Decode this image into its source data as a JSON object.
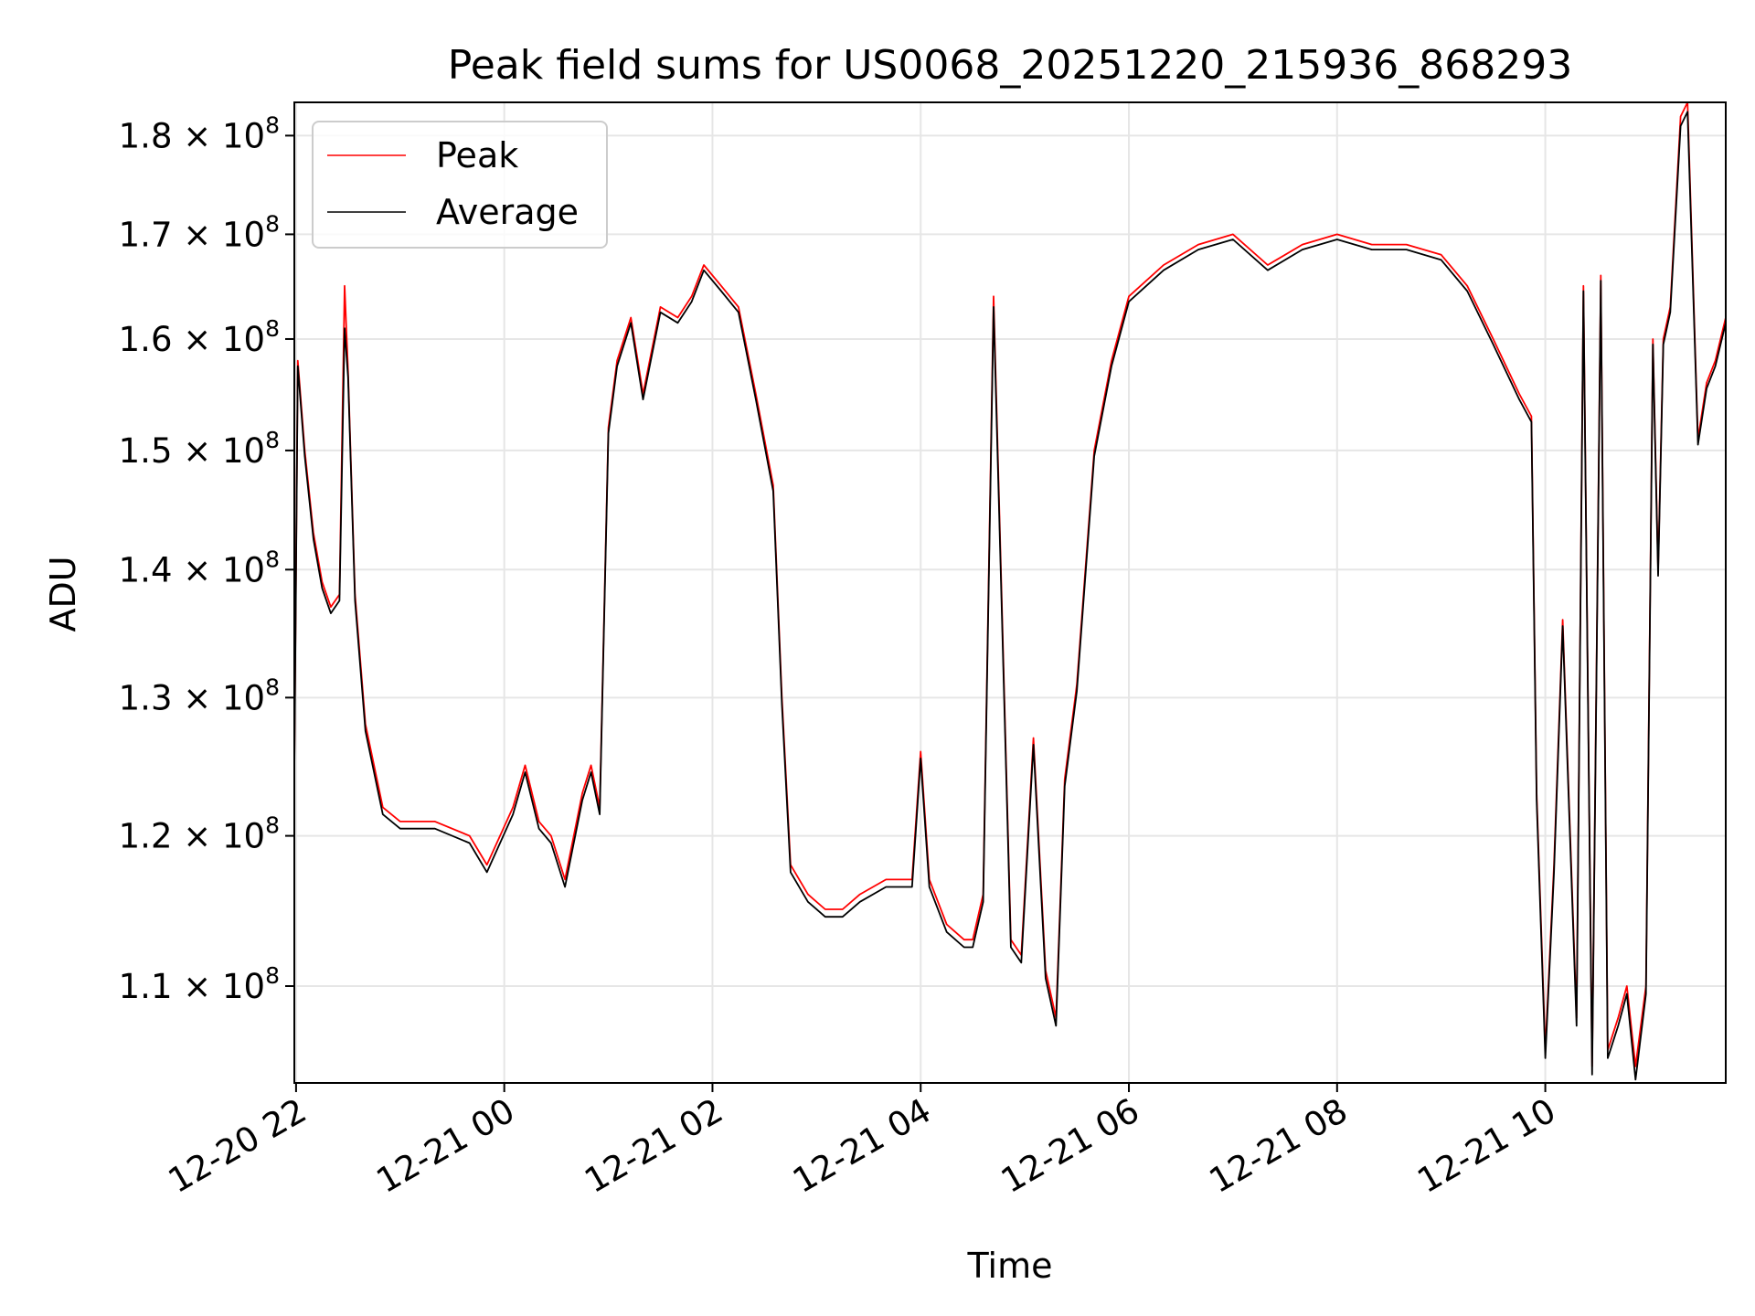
{
  "chart_data": {
    "type": "line",
    "title": "Peak field sums for US0068_20251220_215936_868293",
    "xlabel": "Time",
    "ylabel": "ADU",
    "yscale": "log",
    "xlim": [
      "2025-12-20T21:59",
      "2025-12-21T11:44"
    ],
    "ylim": [
      104000000,
      183500000
    ],
    "x_ticks": [
      "12-20 22",
      "12-21 00",
      "12-21 02",
      "12-21 04",
      "12-21 06",
      "12-21 08",
      "12-21 10"
    ],
    "y_ticks": [
      {
        "value": 110000000,
        "mantissa": "1.1",
        "base": "10",
        "exp": "8"
      },
      {
        "value": 120000000,
        "mantissa": "1.2",
        "base": "10",
        "exp": "8"
      },
      {
        "value": 130000000,
        "mantissa": "1.3",
        "base": "10",
        "exp": "8"
      },
      {
        "value": 140000000,
        "mantissa": "1.4",
        "base": "10",
        "exp": "8"
      },
      {
        "value": 150000000,
        "mantissa": "1.5",
        "base": "10",
        "exp": "8"
      },
      {
        "value": 160000000,
        "mantissa": "1.6",
        "base": "10",
        "exp": "8"
      },
      {
        "value": 170000000,
        "mantissa": "1.7",
        "base": "10",
        "exp": "8"
      },
      {
        "value": 180000000,
        "mantissa": "1.8",
        "base": "10",
        "exp": "8"
      }
    ],
    "grid": true,
    "legend_position": "top-left",
    "series": [
      {
        "name": "Peak",
        "color": "#ff0000",
        "x": [
          "2025-12-20T21:59",
          "2025-12-20T22:01",
          "2025-12-20T22:05",
          "2025-12-20T22:10",
          "2025-12-20T22:15",
          "2025-12-20T22:20",
          "2025-12-20T22:25",
          "2025-12-20T22:28",
          "2025-12-20T22:30",
          "2025-12-20T22:34",
          "2025-12-20T22:40",
          "2025-12-20T22:50",
          "2025-12-20T23:00",
          "2025-12-20T23:20",
          "2025-12-20T23:40",
          "2025-12-20T23:50",
          "2025-12-21T00:05",
          "2025-12-21T00:12",
          "2025-12-21T00:20",
          "2025-12-21T00:27",
          "2025-12-21T00:35",
          "2025-12-21T00:45",
          "2025-12-21T00:50",
          "2025-12-21T00:55",
          "2025-12-21T01:00",
          "2025-12-21T01:05",
          "2025-12-21T01:13",
          "2025-12-21T01:20",
          "2025-12-21T01:30",
          "2025-12-21T01:40",
          "2025-12-21T01:48",
          "2025-12-21T01:55",
          "2025-12-21T02:05",
          "2025-12-21T02:15",
          "2025-12-21T02:25",
          "2025-12-21T02:35",
          "2025-12-21T02:40",
          "2025-12-21T02:45",
          "2025-12-21T02:55",
          "2025-12-21T03:05",
          "2025-12-21T03:15",
          "2025-12-21T03:25",
          "2025-12-21T03:40",
          "2025-12-21T03:55",
          "2025-12-21T04:00",
          "2025-12-21T04:05",
          "2025-12-21T04:15",
          "2025-12-21T04:25",
          "2025-12-21T04:30",
          "2025-12-21T04:36",
          "2025-12-21T04:42",
          "2025-12-21T04:52",
          "2025-12-21T04:58",
          "2025-12-21T05:05",
          "2025-12-21T05:12",
          "2025-12-21T05:18",
          "2025-12-21T05:23",
          "2025-12-21T05:30",
          "2025-12-21T05:40",
          "2025-12-21T05:50",
          "2025-12-21T06:00",
          "2025-12-21T06:20",
          "2025-12-21T06:40",
          "2025-12-21T07:00",
          "2025-12-21T07:20",
          "2025-12-21T07:40",
          "2025-12-21T08:00",
          "2025-12-21T08:20",
          "2025-12-21T08:40",
          "2025-12-21T09:00",
          "2025-12-21T09:15",
          "2025-12-21T09:30",
          "2025-12-21T09:45",
          "2025-12-21T09:52",
          "2025-12-21T09:55",
          "2025-12-21T10:00",
          "2025-12-21T10:05",
          "2025-12-21T10:10",
          "2025-12-21T10:18",
          "2025-12-21T10:22",
          "2025-12-21T10:27",
          "2025-12-21T10:32",
          "2025-12-21T10:36",
          "2025-12-21T10:42",
          "2025-12-21T10:47",
          "2025-12-21T10:52",
          "2025-12-21T10:58",
          "2025-12-21T11:02",
          "2025-12-21T11:05",
          "2025-12-21T11:08",
          "2025-12-21T11:12",
          "2025-12-21T11:18",
          "2025-12-21T11:22",
          "2025-12-21T11:28",
          "2025-12-21T11:33",
          "2025-12-21T11:38",
          "2025-12-21T11:44"
        ],
        "values": [
          125000000,
          158000000,
          150000000,
          143000000,
          139000000,
          137000000,
          138000000,
          165000000,
          157000000,
          138000000,
          128000000,
          122000000,
          121000000,
          121000000,
          120000000,
          118000000,
          122000000,
          125000000,
          121000000,
          120000000,
          117000000,
          123000000,
          125000000,
          122000000,
          152000000,
          158000000,
          162000000,
          155000000,
          163000000,
          162000000,
          164000000,
          167000000,
          165000000,
          163000000,
          155000000,
          147000000,
          130000000,
          118000000,
          116000000,
          115000000,
          115000000,
          116000000,
          117000000,
          117000000,
          126000000,
          117000000,
          114000000,
          113000000,
          113000000,
          116000000,
          164000000,
          113000000,
          112000000,
          127000000,
          111000000,
          108000000,
          124000000,
          131000000,
          150000000,
          158000000,
          164000000,
          167000000,
          169000000,
          170000000,
          167000000,
          169000000,
          170000000,
          169000000,
          169000000,
          168000000,
          165000000,
          160000000,
          155000000,
          153000000,
          123000000,
          106000000,
          118000000,
          136000000,
          108000000,
          165000000,
          105000000,
          166000000,
          106000000,
          108000000,
          110000000,
          105000000,
          110000000,
          160000000,
          140000000,
          160000000,
          163000000,
          182000000,
          183500000,
          151000000,
          156000000,
          158000000,
          162000000
        ]
      },
      {
        "name": "Average",
        "color": "#000000",
        "x": [
          "2025-12-20T21:59",
          "2025-12-20T22:01",
          "2025-12-20T22:05",
          "2025-12-20T22:10",
          "2025-12-20T22:15",
          "2025-12-20T22:20",
          "2025-12-20T22:25",
          "2025-12-20T22:28",
          "2025-12-20T22:30",
          "2025-12-20T22:34",
          "2025-12-20T22:40",
          "2025-12-20T22:50",
          "2025-12-20T23:00",
          "2025-12-20T23:20",
          "2025-12-20T23:40",
          "2025-12-20T23:50",
          "2025-12-21T00:05",
          "2025-12-21T00:12",
          "2025-12-21T00:20",
          "2025-12-21T00:27",
          "2025-12-21T00:35",
          "2025-12-21T00:45",
          "2025-12-21T00:50",
          "2025-12-21T00:55",
          "2025-12-21T01:00",
          "2025-12-21T01:05",
          "2025-12-21T01:13",
          "2025-12-21T01:20",
          "2025-12-21T01:30",
          "2025-12-21T01:40",
          "2025-12-21T01:48",
          "2025-12-21T01:55",
          "2025-12-21T02:05",
          "2025-12-21T02:15",
          "2025-12-21T02:25",
          "2025-12-21T02:35",
          "2025-12-21T02:40",
          "2025-12-21T02:45",
          "2025-12-21T02:55",
          "2025-12-21T03:05",
          "2025-12-21T03:15",
          "2025-12-21T03:25",
          "2025-12-21T03:40",
          "2025-12-21T03:55",
          "2025-12-21T04:00",
          "2025-12-21T04:05",
          "2025-12-21T04:15",
          "2025-12-21T04:25",
          "2025-12-21T04:30",
          "2025-12-21T04:36",
          "2025-12-21T04:42",
          "2025-12-21T04:52",
          "2025-12-21T04:58",
          "2025-12-21T05:05",
          "2025-12-21T05:12",
          "2025-12-21T05:18",
          "2025-12-21T05:23",
          "2025-12-21T05:30",
          "2025-12-21T05:40",
          "2025-12-21T05:50",
          "2025-12-21T06:00",
          "2025-12-21T06:20",
          "2025-12-21T06:40",
          "2025-12-21T07:00",
          "2025-12-21T07:20",
          "2025-12-21T07:40",
          "2025-12-21T08:00",
          "2025-12-21T08:20",
          "2025-12-21T08:40",
          "2025-12-21T09:00",
          "2025-12-21T09:15",
          "2025-12-21T09:30",
          "2025-12-21T09:45",
          "2025-12-21T09:52",
          "2025-12-21T09:55",
          "2025-12-21T10:00",
          "2025-12-21T10:05",
          "2025-12-21T10:10",
          "2025-12-21T10:18",
          "2025-12-21T10:22",
          "2025-12-21T10:27",
          "2025-12-21T10:32",
          "2025-12-21T10:36",
          "2025-12-21T10:42",
          "2025-12-21T10:47",
          "2025-12-21T10:52",
          "2025-12-21T10:58",
          "2025-12-21T11:02",
          "2025-12-21T11:05",
          "2025-12-21T11:08",
          "2025-12-21T11:12",
          "2025-12-21T11:18",
          "2025-12-21T11:22",
          "2025-12-21T11:28",
          "2025-12-21T11:33",
          "2025-12-21T11:38",
          "2025-12-21T11:44"
        ],
        "values": [
          124500000,
          157500000,
          149500000,
          142500000,
          138500000,
          136500000,
          137500000,
          161000000,
          156500000,
          137500000,
          127500000,
          121500000,
          120500000,
          120500000,
          119500000,
          117500000,
          121500000,
          124500000,
          120500000,
          119500000,
          116500000,
          122500000,
          124500000,
          121500000,
          151500000,
          157500000,
          161500000,
          154500000,
          162500000,
          161500000,
          163500000,
          166500000,
          164500000,
          162500000,
          154500000,
          146500000,
          129500000,
          117500000,
          115500000,
          114500000,
          114500000,
          115500000,
          116500000,
          116500000,
          125500000,
          116500000,
          113500000,
          112500000,
          112500000,
          115500000,
          163000000,
          112500000,
          111500000,
          126500000,
          110500000,
          107500000,
          123500000,
          130500000,
          149500000,
          157500000,
          163500000,
          166500000,
          168500000,
          169500000,
          166500000,
          168500000,
          169500000,
          168500000,
          168500000,
          167500000,
          164500000,
          159500000,
          154500000,
          152500000,
          122500000,
          105500000,
          117500000,
          135500000,
          107500000,
          164500000,
          104500000,
          165500000,
          105500000,
          107500000,
          109500000,
          104200000,
          109500000,
          159500000,
          139500000,
          159500000,
          162500000,
          181000000,
          182500000,
          150500000,
          155500000,
          157500000,
          161500000
        ]
      }
    ]
  }
}
